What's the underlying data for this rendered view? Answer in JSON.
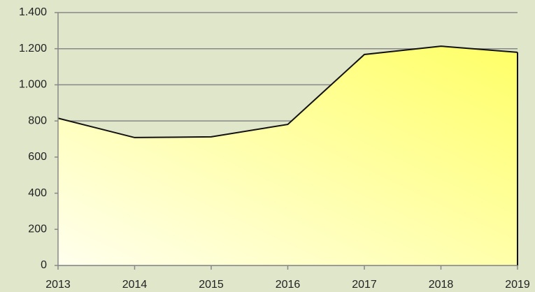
{
  "chart_data": {
    "type": "area",
    "categories": [
      "2013",
      "2014",
      "2015",
      "2016",
      "2017",
      "2018",
      "2019"
    ],
    "values": [
      815,
      708,
      712,
      781,
      1168,
      1214,
      1180
    ],
    "ylim": [
      0,
      1400
    ],
    "yticks": [
      0,
      200,
      400,
      600,
      800,
      {
        "value": 1000,
        "label": "1.000"
      },
      {
        "value": 1200,
        "label": "1.200"
      },
      {
        "value": 1400,
        "label": "1.400"
      }
    ],
    "grid": true,
    "color": "#ffff66",
    "line_color": "#111111"
  }
}
